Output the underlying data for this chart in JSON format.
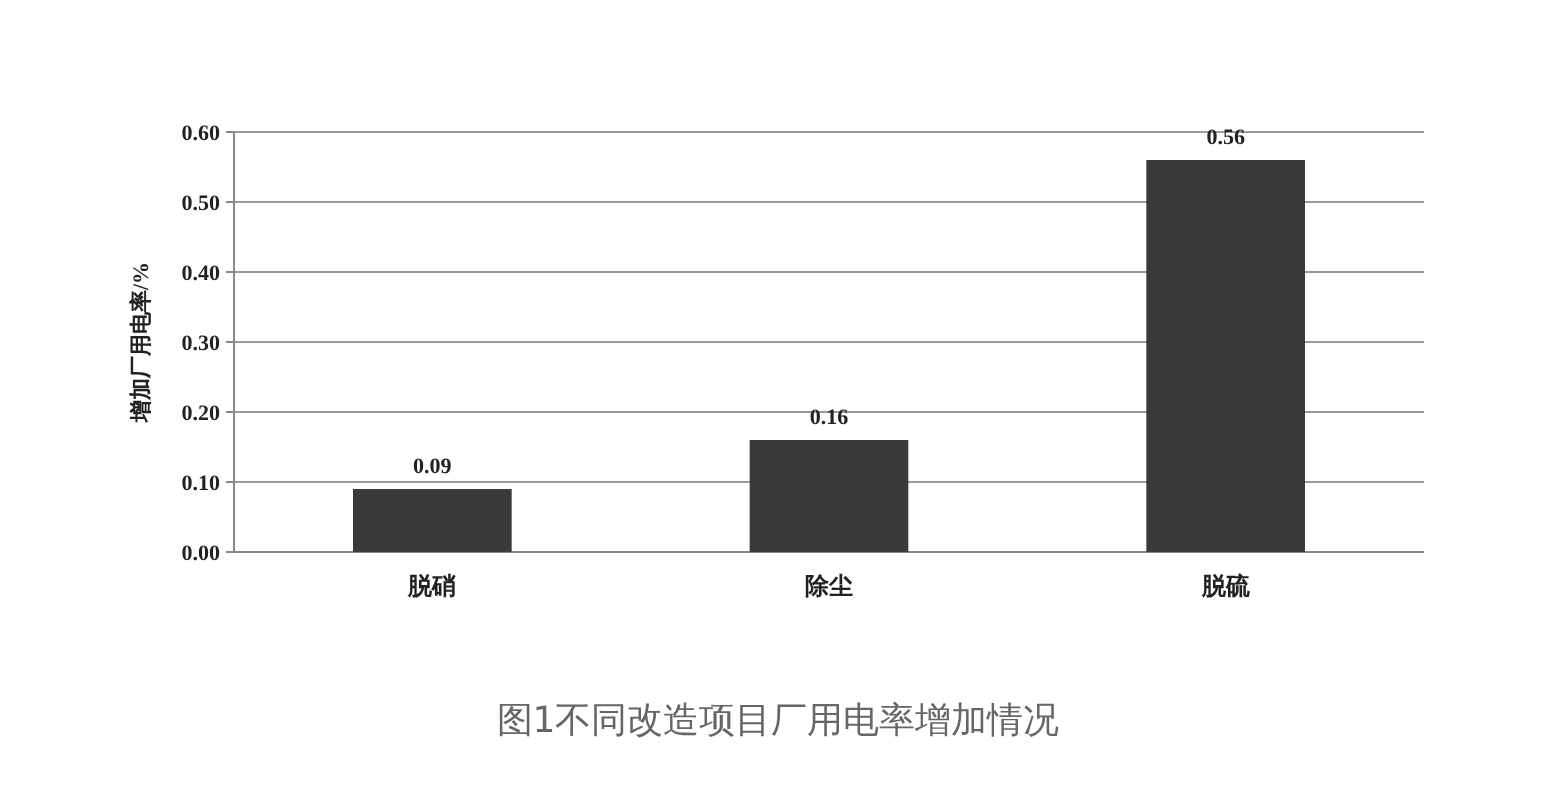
{
  "chart_data": {
    "type": "bar",
    "ylabel": "增加厂用电率/%",
    "categories": [
      "脱硝",
      "除尘",
      "脱硫"
    ],
    "values": [
      0.09,
      0.16,
      0.56
    ],
    "color": "#3a3a3a",
    "ylim": [
      0,
      0.6
    ],
    "yticks": [
      {
        "value": 0,
        "label": "0.00"
      },
      {
        "value": 0.1,
        "label": "0.10"
      },
      {
        "value": 0.2,
        "label": "0.20"
      },
      {
        "value": 0.3,
        "label": "0.30"
      },
      {
        "value": 0.4,
        "label": "0.40"
      },
      {
        "value": 0.5,
        "label": "0.50"
      },
      {
        "value": 0.6,
        "label": "0.60"
      }
    ],
    "grid": "y",
    "data_labels": true,
    "annotations": [
      "图1不同改造项目厂用电率增加情况"
    ]
  }
}
